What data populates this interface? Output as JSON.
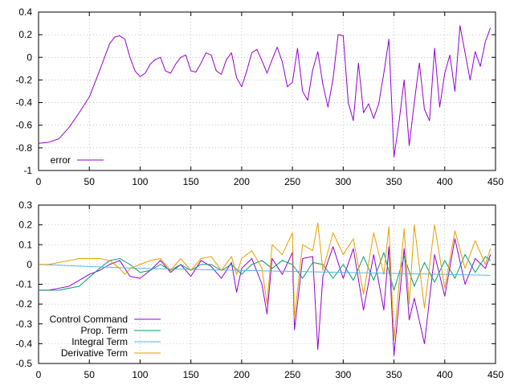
{
  "chart_data": [
    {
      "type": "line",
      "title": "",
      "xlabel": "",
      "ylabel": "",
      "xlim": [
        0,
        450
      ],
      "ylim": [
        -1,
        0.4
      ],
      "xticks": [
        0,
        50,
        100,
        150,
        200,
        250,
        300,
        350,
        400,
        450
      ],
      "yticks": [
        -1,
        -0.8,
        -0.6,
        -0.4,
        -0.2,
        0,
        0.2,
        0.4
      ],
      "xtick_labels": [
        "0",
        "50",
        "100",
        "150",
        "200",
        "250",
        "300",
        "350",
        "400",
        "450"
      ],
      "ytick_labels": [
        "-1",
        "-0.8",
        "-0.6",
        "-0.4",
        "-0.2",
        "0",
        "0.2",
        "0.4"
      ],
      "grid": true,
      "legend_position": "bottom-left",
      "series": [
        {
          "name": "error",
          "color": "#9400d3",
          "x": [
            0,
            10,
            20,
            30,
            40,
            50,
            60,
            70,
            75,
            80,
            85,
            90,
            95,
            100,
            105,
            110,
            115,
            120,
            125,
            130,
            135,
            140,
            145,
            150,
            155,
            160,
            165,
            170,
            175,
            180,
            185,
            190,
            195,
            200,
            205,
            210,
            215,
            220,
            225,
            230,
            235,
            240,
            245,
            250,
            255,
            260,
            265,
            270,
            275,
            280,
            285,
            290,
            295,
            300,
            305,
            310,
            315,
            320,
            325,
            330,
            335,
            340,
            345,
            350,
            355,
            360,
            365,
            370,
            375,
            380,
            385,
            390,
            395,
            400,
            405,
            410,
            415,
            420,
            425,
            430,
            435,
            440,
            445
          ],
          "y": [
            -0.76,
            -0.75,
            -0.72,
            -0.62,
            -0.49,
            -0.35,
            -0.12,
            0.12,
            0.18,
            0.19,
            0.16,
            0.0,
            -0.12,
            -0.17,
            -0.14,
            -0.06,
            -0.02,
            0.0,
            -0.12,
            -0.14,
            -0.06,
            0.0,
            0.02,
            -0.12,
            -0.13,
            -0.05,
            0.04,
            0.02,
            -0.12,
            -0.15,
            -0.02,
            0.04,
            -0.18,
            -0.26,
            -0.12,
            0.04,
            0.07,
            -0.03,
            -0.14,
            -0.02,
            0.09,
            -0.04,
            -0.26,
            -0.22,
            0.08,
            -0.3,
            -0.38,
            -0.11,
            0.05,
            -0.24,
            -0.44,
            -0.19,
            0.2,
            0.19,
            -0.4,
            -0.56,
            -0.05,
            -0.49,
            -0.41,
            -0.54,
            -0.41,
            -0.14,
            0.16,
            -0.88,
            -0.57,
            -0.2,
            -0.78,
            -0.4,
            -0.05,
            -0.46,
            -0.56,
            0.08,
            -0.44,
            -0.14,
            0.02,
            -0.3,
            0.28,
            0.04,
            -0.2,
            0.05,
            -0.08,
            0.14,
            0.26
          ]
        }
      ]
    },
    {
      "type": "line",
      "title": "",
      "xlabel": "",
      "ylabel": "",
      "xlim": [
        0,
        450
      ],
      "ylim": [
        -0.5,
        0.3
      ],
      "xticks": [
        0,
        50,
        100,
        150,
        200,
        250,
        300,
        350,
        400,
        450
      ],
      "yticks": [
        -0.5,
        -0.4,
        -0.3,
        -0.2,
        -0.1,
        0,
        0.1,
        0.2,
        0.3
      ],
      "xtick_labels": [
        "0",
        "50",
        "100",
        "150",
        "200",
        "250",
        "300",
        "350",
        "400",
        "450"
      ],
      "ytick_labels": [
        "-0.5",
        "-0.4",
        "-0.3",
        "-0.2",
        "-0.1",
        "0",
        "0.1",
        "0.2",
        "0.3"
      ],
      "grid": true,
      "legend_position": "bottom-left",
      "series": [
        {
          "name": "Control Command",
          "color": "#9400d3",
          "x": [
            0,
            10,
            20,
            30,
            40,
            50,
            60,
            70,
            80,
            90,
            100,
            110,
            120,
            130,
            140,
            150,
            160,
            170,
            180,
            190,
            195,
            200,
            210,
            220,
            225,
            230,
            240,
            250,
            252,
            260,
            270,
            275,
            280,
            290,
            300,
            310,
            320,
            330,
            340,
            345,
            350,
            360,
            365,
            370,
            380,
            390,
            400,
            410,
            420,
            430,
            440,
            445
          ],
          "y": [
            -0.13,
            -0.13,
            -0.12,
            -0.11,
            -0.08,
            -0.05,
            -0.03,
            0.0,
            0.02,
            -0.06,
            -0.07,
            -0.03,
            0.02,
            -0.04,
            0.0,
            -0.06,
            0.02,
            -0.01,
            -0.07,
            0.01,
            -0.14,
            -0.02,
            0.03,
            -0.1,
            -0.25,
            0.03,
            -0.05,
            0.06,
            -0.33,
            0.03,
            0.04,
            -0.43,
            -0.06,
            0.09,
            -0.07,
            0.08,
            -0.23,
            0.05,
            -0.23,
            0.09,
            -0.46,
            0.08,
            -0.28,
            -0.17,
            -0.4,
            0.05,
            -0.16,
            0.13,
            -0.1,
            0.03,
            -0.02,
            0.05
          ]
        },
        {
          "name": "Prop. Term",
          "color": "#009e73",
          "x": [
            0,
            20,
            40,
            60,
            70,
            80,
            90,
            100,
            110,
            120,
            130,
            140,
            150,
            160,
            170,
            180,
            190,
            200,
            210,
            220,
            230,
            240,
            250,
            260,
            270,
            280,
            290,
            300,
            310,
            320,
            330,
            340,
            350,
            360,
            370,
            380,
            390,
            400,
            410,
            420,
            430,
            440,
            445
          ],
          "y": [
            -0.13,
            -0.13,
            -0.11,
            -0.02,
            0.02,
            0.03,
            0.0,
            -0.04,
            -0.03,
            0.0,
            -0.03,
            0.0,
            -0.03,
            0.0,
            0.0,
            -0.03,
            0.0,
            -0.05,
            0.0,
            0.02,
            -0.02,
            0.02,
            0.0,
            -0.07,
            0.01,
            0.0,
            -0.07,
            0.0,
            -0.08,
            0.04,
            -0.08,
            0.06,
            -0.13,
            0.04,
            -0.11,
            0.01,
            -0.09,
            0.02,
            -0.07,
            0.05,
            -0.04,
            0.04,
            0.02
          ]
        },
        {
          "name": "Integral Term",
          "color": "#56b4e9",
          "x": [
            0,
            50,
            100,
            150,
            200,
            250,
            300,
            350,
            400,
            445
          ],
          "y": [
            0.0,
            -0.01,
            -0.02,
            -0.025,
            -0.03,
            -0.035,
            -0.04,
            -0.045,
            -0.05,
            -0.055
          ]
        },
        {
          "name": "Derivative Term",
          "color": "#e69f00",
          "x": [
            0,
            10,
            20,
            30,
            40,
            50,
            60,
            70,
            80,
            85,
            90,
            100,
            110,
            120,
            130,
            140,
            150,
            160,
            170,
            180,
            190,
            195,
            200,
            210,
            220,
            225,
            230,
            240,
            250,
            252,
            260,
            270,
            275,
            280,
            290,
            300,
            310,
            320,
            330,
            340,
            345,
            350,
            360,
            365,
            370,
            380,
            390,
            400,
            410,
            420,
            430,
            440,
            445
          ],
          "y": [
            0.0,
            0.0,
            0.01,
            0.02,
            0.03,
            0.03,
            0.03,
            0.02,
            -0.02,
            -0.05,
            -0.02,
            0.0,
            0.02,
            0.03,
            -0.03,
            0.03,
            -0.03,
            0.03,
            0.04,
            -0.03,
            0.04,
            -0.05,
            0.03,
            0.07,
            -0.02,
            -0.2,
            0.1,
            0.05,
            0.16,
            -0.27,
            0.1,
            0.07,
            0.21,
            -0.03,
            0.16,
            0.05,
            0.13,
            -0.15,
            0.16,
            -0.05,
            0.19,
            -0.38,
            0.18,
            -0.2,
            0.2,
            -0.22,
            0.2,
            -0.12,
            0.17,
            -0.02,
            0.12,
            0.0,
            0.08
          ]
        }
      ]
    }
  ]
}
